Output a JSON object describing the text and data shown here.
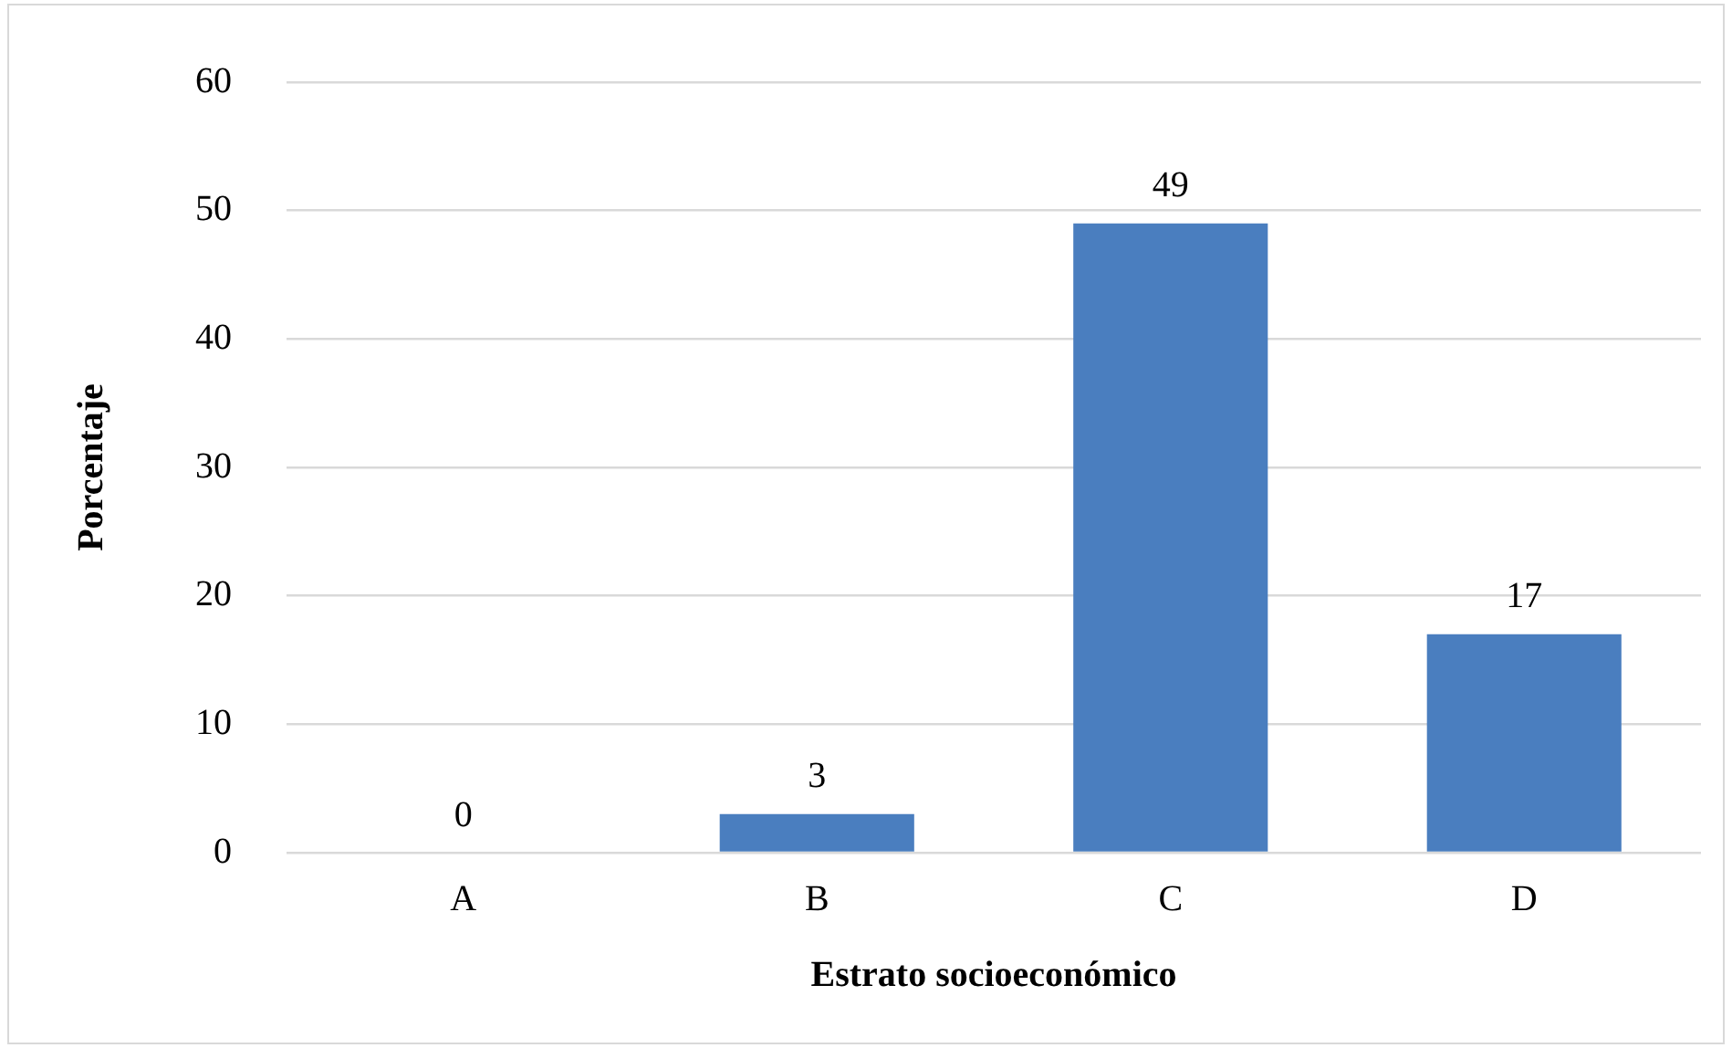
{
  "chart_data": {
    "type": "bar",
    "xlabel": "Estrato socioeconómico",
    "ylabel": "Porcentaje",
    "categories": [
      "A",
      "B",
      "C",
      "D"
    ],
    "values": [
      0,
      3,
      49,
      17
    ],
    "color": "#4a7ebf",
    "ylim": [
      0,
      60
    ],
    "yticks": [
      0,
      10,
      20,
      30,
      40,
      50,
      60
    ],
    "grid": "y",
    "data_labels": true,
    "legend": false
  }
}
